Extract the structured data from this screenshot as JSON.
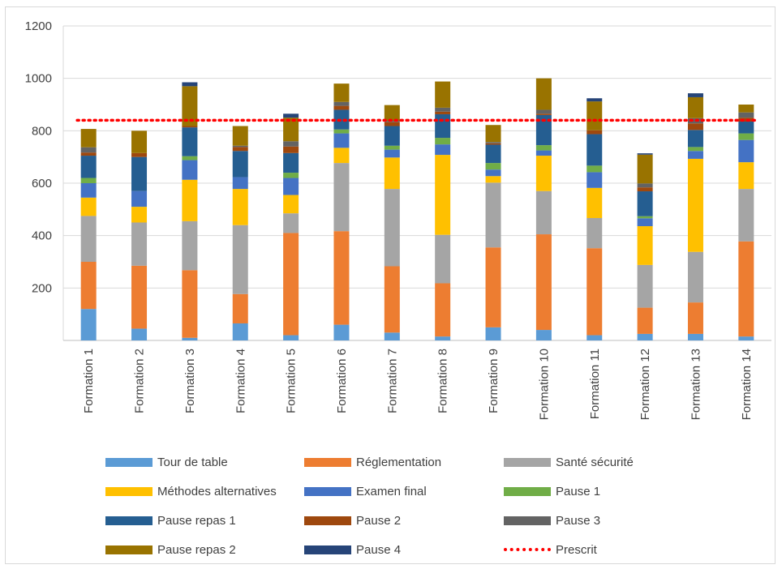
{
  "chart_data": {
    "type": "bar",
    "stacked": true,
    "categories": [
      "Formation 1",
      "Formation 2",
      "Formation 3",
      "Formation 4",
      "Formation 5",
      "Formation 6",
      "Formation 7",
      "Formation 8",
      "Formation 9",
      "Formation 10",
      "Formation 11",
      "Formation 12",
      "Formation 13",
      "Formation 14"
    ],
    "ylim": [
      0,
      1200
    ],
    "yticks": [
      200,
      400,
      600,
      800,
      1000,
      1200
    ],
    "grid": true,
    "legend_position": "bottom",
    "series": [
      {
        "name": "Tour de table",
        "color": "#5b9bd5",
        "values": [
          120,
          45,
          10,
          65,
          20,
          60,
          30,
          15,
          50,
          40,
          20,
          25,
          25,
          15
        ]
      },
      {
        "name": "Réglementation",
        "color": "#ed7d31",
        "values": [
          180,
          240,
          258,
          112,
          390,
          357,
          253,
          203,
          305,
          365,
          332,
          100,
          120,
          363
        ]
      },
      {
        "name": "Santé sécurité",
        "color": "#a5a5a5",
        "values": [
          175,
          165,
          187,
          263,
          75,
          260,
          295,
          185,
          247,
          165,
          115,
          163,
          193,
          200
        ]
      },
      {
        "name": "Méthodes alternatives",
        "color": "#ffc000",
        "values": [
          70,
          60,
          158,
          138,
          70,
          58,
          120,
          305,
          25,
          135,
          115,
          148,
          355,
          102
        ]
      },
      {
        "name": "Examen final",
        "color": "#4472c4",
        "values": [
          55,
          60,
          75,
          45,
          65,
          55,
          30,
          40,
          25,
          20,
          60,
          30,
          30,
          85
        ]
      },
      {
        "name": "Pause 1",
        "color": "#70ad47",
        "values": [
          20,
          0,
          15,
          0,
          20,
          15,
          15,
          25,
          25,
          20,
          25,
          8,
          15,
          25
        ]
      },
      {
        "name": "Pause repas 1",
        "color": "#255e91",
        "values": [
          85,
          130,
          110,
          100,
          75,
          75,
          75,
          90,
          70,
          115,
          120,
          95,
          65,
          45
        ]
      },
      {
        "name": "Pause 2",
        "color": "#9e480e",
        "values": [
          12,
          15,
          5,
          15,
          25,
          15,
          15,
          10,
          5,
          5,
          15,
          15,
          25,
          15
        ]
      },
      {
        "name": "Pause 3",
        "color": "#636363",
        "values": [
          20,
          0,
          0,
          5,
          20,
          15,
          5,
          15,
          5,
          15,
          0,
          15,
          20,
          20
        ]
      },
      {
        "name": "Pause repas 2",
        "color": "#997300",
        "values": [
          70,
          85,
          152,
          75,
          90,
          70,
          60,
          100,
          65,
          120,
          110,
          110,
          80,
          30
        ]
      },
      {
        "name": "Pause 4",
        "color": "#264478",
        "values": [
          0,
          0,
          15,
          0,
          15,
          0,
          0,
          0,
          0,
          0,
          12,
          5,
          15,
          0
        ]
      }
    ],
    "reference_line": {
      "name": "Prescrit",
      "color": "#ff0000",
      "value": 840,
      "style": "dotted"
    }
  }
}
